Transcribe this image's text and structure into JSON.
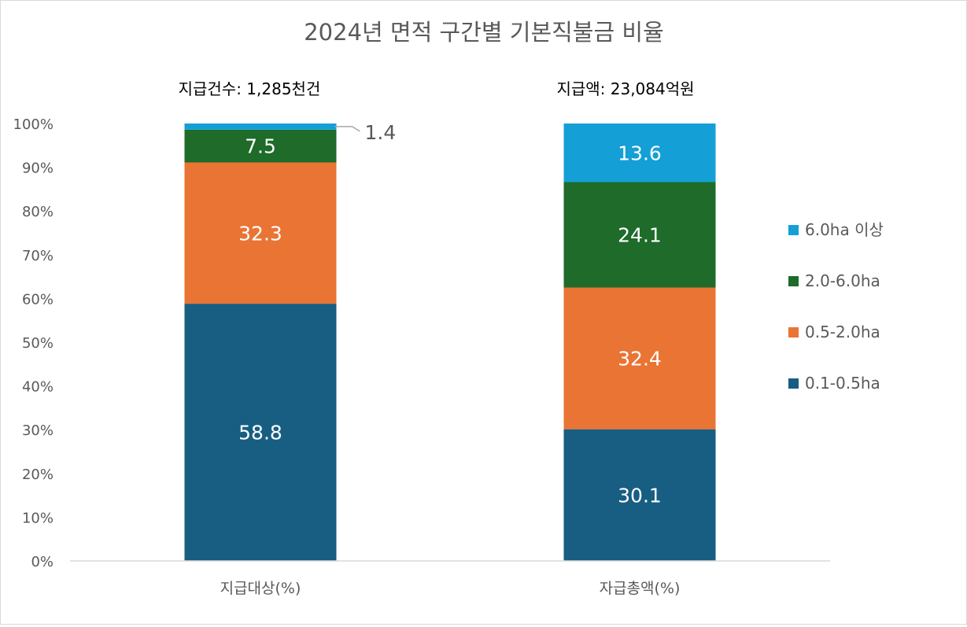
{
  "chart_data": {
    "type": "bar",
    "stacked": true,
    "title": "2024년 면적 구간별 기본직불금 비율",
    "categories": [
      "지급대상(%)",
      "자급총액(%)"
    ],
    "bar_headers": [
      "지급건수: 1,285천건",
      "지급액:  23,084억원"
    ],
    "ylim": [
      0,
      100
    ],
    "yticks": [
      "0%",
      "10%",
      "20%",
      "30%",
      "40%",
      "50%",
      "60%",
      "70%",
      "80%",
      "90%",
      "100%"
    ],
    "legend_position": "right",
    "grid": false,
    "series": [
      {
        "name": "0.1-0.5ha",
        "color": "#175e82",
        "values": [
          58.8,
          30.1
        ]
      },
      {
        "name": "0.5-2.0ha",
        "color": "#e97434",
        "values": [
          32.3,
          32.4
        ]
      },
      {
        "name": "2.0-6.0ha",
        "color": "#1e6b2a",
        "values": [
          7.5,
          24.1
        ]
      },
      {
        "name": "6.0ha 이상",
        "color": "#149fd6",
        "values": [
          1.4,
          13.6
        ]
      }
    ],
    "data_labels": [
      [
        "58.8",
        "30.1"
      ],
      [
        "32.3",
        "32.4"
      ],
      [
        "7.5",
        "24.1"
      ],
      [
        "1.4",
        "13.6"
      ]
    ]
  }
}
